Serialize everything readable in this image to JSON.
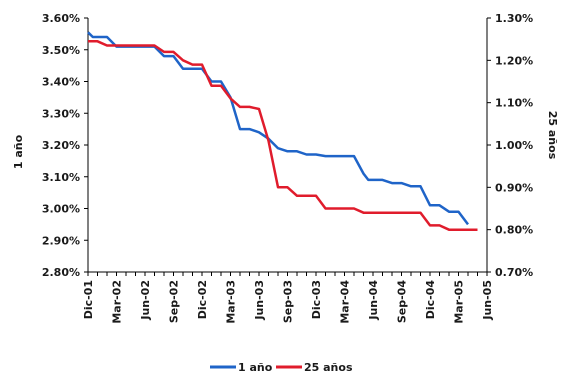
{
  "chart_data": {
    "type": "line",
    "title": "",
    "y_left_label": "1 año",
    "y_right_label": "25 años",
    "y_left_lim": [
      0.028,
      0.036
    ],
    "y_right_lim": [
      0.007,
      0.013
    ],
    "y_left_ticks": [
      "3.60%",
      "3.50%",
      "3.40%",
      "3.30%",
      "3.20%",
      "3.10%",
      "3.00%",
      "2.90%",
      "2.80%"
    ],
    "y_right_ticks": [
      "1.30%",
      "1.20%",
      "1.10%",
      "1.00%",
      "0.90%",
      "0.80%",
      "0.70%"
    ],
    "x_tick_labels": [
      "Dic-01",
      "Mar-02",
      "Jun-02",
      "Sep-02",
      "Dic-02",
      "Mar-03",
      "Jun-03",
      "Sep-03",
      "Dic-03",
      "Mar-04",
      "Jun-04",
      "Sep-04",
      "Dic-04",
      "Mar-05",
      "Jun-05"
    ],
    "x_months": 42,
    "legend_position": "bottom",
    "series": [
      {
        "name": "1 año",
        "axis": "left",
        "color": "#1f64c8",
        "points": [
          [
            0,
            0.03555
          ],
          [
            0.5,
            0.0354
          ],
          [
            2,
            0.0354
          ],
          [
            3,
            0.0351
          ],
          [
            4,
            0.0351
          ],
          [
            6,
            0.0351
          ],
          [
            7,
            0.0351
          ],
          [
            8,
            0.0348
          ],
          [
            9,
            0.0348
          ],
          [
            10,
            0.0344
          ],
          [
            11,
            0.0344
          ],
          [
            12,
            0.0344
          ],
          [
            13,
            0.034
          ],
          [
            14,
            0.034
          ],
          [
            15,
            0.0335
          ],
          [
            16,
            0.0325
          ],
          [
            17,
            0.0325
          ],
          [
            18,
            0.0324
          ],
          [
            19,
            0.0322
          ],
          [
            20,
            0.0319
          ],
          [
            21,
            0.0318
          ],
          [
            22,
            0.0318
          ],
          [
            23,
            0.0317
          ],
          [
            24,
            0.0317
          ],
          [
            25,
            0.03165
          ],
          [
            26,
            0.03165
          ],
          [
            28,
            0.03165
          ],
          [
            29,
            0.0311
          ],
          [
            29.5,
            0.0309
          ],
          [
            30,
            0.0309
          ],
          [
            31,
            0.0309
          ],
          [
            32,
            0.0308
          ],
          [
            33,
            0.0308
          ],
          [
            34,
            0.0307
          ],
          [
            35,
            0.0307
          ],
          [
            36,
            0.0301
          ],
          [
            37,
            0.0301
          ],
          [
            38,
            0.0299
          ],
          [
            39,
            0.0299
          ],
          [
            40,
            0.0295
          ]
        ]
      },
      {
        "name": "25 años",
        "axis": "right",
        "color": "#e01c2c",
        "points": [
          [
            0,
            0.01245
          ],
          [
            1,
            0.01245
          ],
          [
            2,
            0.01235
          ],
          [
            3,
            0.01235
          ],
          [
            4,
            0.01235
          ],
          [
            6,
            0.01235
          ],
          [
            7,
            0.01235
          ],
          [
            8,
            0.0122
          ],
          [
            9,
            0.0122
          ],
          [
            10,
            0.012
          ],
          [
            11,
            0.0119
          ],
          [
            12,
            0.0119
          ],
          [
            13,
            0.0114
          ],
          [
            14,
            0.0114
          ],
          [
            15,
            0.0111
          ],
          [
            16,
            0.0109
          ],
          [
            17,
            0.0109
          ],
          [
            18,
            0.01085
          ],
          [
            19,
            0.0101
          ],
          [
            20,
            0.009
          ],
          [
            21,
            0.009
          ],
          [
            22,
            0.0088
          ],
          [
            23,
            0.0088
          ],
          [
            24,
            0.0088
          ],
          [
            25,
            0.0085
          ],
          [
            26,
            0.0085
          ],
          [
            27,
            0.0085
          ],
          [
            28,
            0.0085
          ],
          [
            29,
            0.0084
          ],
          [
            30,
            0.0084
          ],
          [
            31,
            0.0084
          ],
          [
            32,
            0.0084
          ],
          [
            33,
            0.0084
          ],
          [
            34,
            0.0084
          ],
          [
            35,
            0.0084
          ],
          [
            36,
            0.0081
          ],
          [
            37,
            0.0081
          ],
          [
            38,
            0.008
          ],
          [
            39,
            0.008
          ],
          [
            40,
            0.008
          ],
          [
            41,
            0.008
          ]
        ]
      }
    ]
  }
}
